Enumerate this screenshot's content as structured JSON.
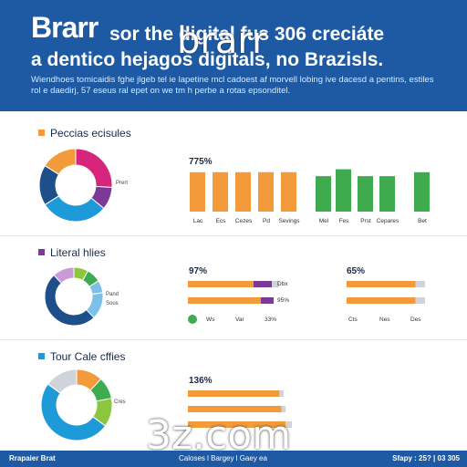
{
  "header": {
    "title_big": "Brarr",
    "title_rest": "sor the digital fus 306 creciáte",
    "title_line2": "a dentico hejagos digitals, no Brazisls.",
    "subtitle": "Wiendhoes tomicaidis fghe jlgeb tel ie lapetine mcl cadoest af morvell lobing ive dacesd a pentins, estiles rol e daedirj, 57 eseus ral epet on we tm h perbe a rotas epsonditel."
  },
  "watermarks": {
    "top": "brarr",
    "bottom": "3z.com"
  },
  "colors": {
    "orange": "#f39a3b",
    "green": "#3fab4f",
    "purple": "#7b3a96",
    "magenta": "#d8247a",
    "blue": "#1f9ad9",
    "navy": "#1f4f8a",
    "lightblue": "#7cc0ea",
    "grey": "#cfd3da",
    "lime": "#8cc63f"
  },
  "chart_data": [
    {
      "type": "pie",
      "title": "Peccias ecisules",
      "title_color": "#f39a3b",
      "slice_label": "Prert",
      "slices": [
        {
          "value": 0.26,
          "color": "#d8247a"
        },
        {
          "value": 0.1,
          "color": "#7b3a96"
        },
        {
          "value": 0.3,
          "color": "#1f9ad9"
        },
        {
          "value": 0.18,
          "color": "#1f4f8a"
        },
        {
          "value": 0.16,
          "color": "#f39a3b"
        }
      ]
    },
    {
      "type": "bar",
      "ylabel": "775%",
      "categories": [
        "Lac",
        "Ecs",
        "Cezes",
        "Pd",
        "Sevings",
        "Mel",
        "Fes",
        "Prst",
        "Cepares",
        "Bet"
      ],
      "values": [
        80,
        80,
        80,
        80,
        80,
        72,
        86,
        72,
        72,
        80
      ],
      "colors": [
        "#f39a3b",
        "#f39a3b",
        "#f39a3b",
        "#f39a3b",
        "#f39a3b",
        "#3fab4f",
        "#3fab4f",
        "#3fab4f",
        "#3fab4f",
        "#3fab4f"
      ],
      "ylim": [
        0,
        100
      ]
    },
    {
      "type": "pie",
      "title": "Literal hlies",
      "title_color": "#7b3a96",
      "slice_label": "Pand",
      "slice_label2": "Sous",
      "slices": [
        {
          "value": 0.08,
          "color": "#8cc63f"
        },
        {
          "value": 0.08,
          "color": "#3fab4f"
        },
        {
          "value": 0.07,
          "color": "#7cc0ea"
        },
        {
          "value": 0.15,
          "color": "#7cc0ea"
        },
        {
          "value": 0.5,
          "color": "#1f4f8a"
        },
        {
          "value": 0.12,
          "color": "#c89ad8"
        }
      ]
    },
    {
      "type": "bar",
      "orientation": "horizontal",
      "value_label": "97%",
      "rows": [
        {
          "segments": [
            {
              "value": 72,
              "color": "#f39a3b"
            },
            {
              "value": 20,
              "color": "#7b3a96"
            },
            {
              "value": 8,
              "color": "#cfd3da"
            }
          ],
          "tail": "Dbx"
        },
        {
          "segments": [
            {
              "value": 80,
              "color": "#f39a3b"
            },
            {
              "value": 14,
              "color": "#7b3a96"
            }
          ],
          "tail": "95%"
        }
      ],
      "legend": [
        "Ws",
        "Var",
        "33%"
      ],
      "legend_dot_color": "#3fab4f"
    },
    {
      "type": "bar",
      "orientation": "horizontal",
      "value_label": "65%",
      "rows": [
        {
          "segments": [
            {
              "value": 88,
              "color": "#f39a3b"
            },
            {
              "value": 12,
              "color": "#cfd3da"
            }
          ]
        },
        {
          "segments": [
            {
              "value": 88,
              "color": "#f39a3b"
            },
            {
              "value": 12,
              "color": "#cfd3da"
            }
          ]
        }
      ],
      "legend": [
        "Cts",
        "Nes",
        "Des"
      ]
    },
    {
      "type": "pie",
      "title": "Tour Cale cffies",
      "title_color": "#1f9ad9",
      "slice_label": "Cres",
      "slices": [
        {
          "value": 0.12,
          "color": "#f39a3b"
        },
        {
          "value": 0.1,
          "color": "#3fab4f"
        },
        {
          "value": 0.13,
          "color": "#8cc63f"
        },
        {
          "value": 0.5,
          "color": "#1f9ad9"
        },
        {
          "value": 0.15,
          "color": "#cfd3da"
        }
      ]
    },
    {
      "type": "bar",
      "orientation": "horizontal",
      "value_label": "136%",
      "rows": [
        {
          "segments": [
            {
              "value": 88,
              "color": "#f39a3b"
            },
            {
              "value": 4,
              "color": "#cfd3da"
            }
          ]
        },
        {
          "segments": [
            {
              "value": 90,
              "color": "#f39a3b"
            },
            {
              "value": 4,
              "color": "#cfd3da"
            }
          ]
        },
        {
          "segments": [
            {
              "value": 94,
              "color": "#f39a3b"
            },
            {
              "value": 6,
              "color": "#cfd3da"
            }
          ]
        }
      ]
    }
  ],
  "footer": {
    "left": "Rrapaier Brat",
    "middle": "Caloses   l Bargey   l Gaey ea",
    "right": "Sfapy : 25? | 03 305"
  }
}
